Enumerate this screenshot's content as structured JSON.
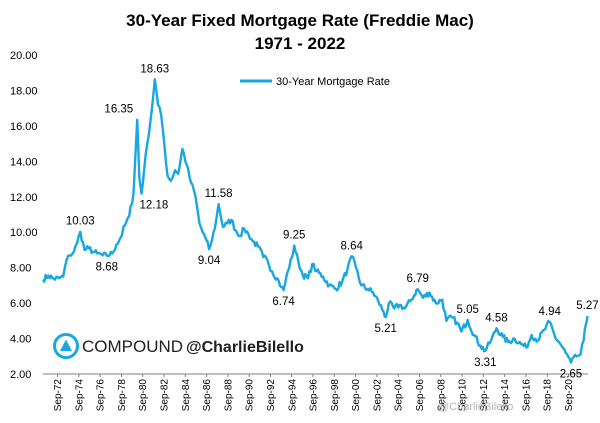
{
  "chart_data": {
    "type": "line",
    "title": "30-Year Fixed Mortgage Rate (Freddie Mac)",
    "subtitle": "1971 - 2022",
    "xlabel": "",
    "ylabel": "",
    "ylim": [
      2.0,
      20.0
    ],
    "yticks": [
      "2.00",
      "4.00",
      "6.00",
      "8.00",
      "10.00",
      "12.00",
      "14.00",
      "16.00",
      "18.00",
      "20.00"
    ],
    "xticks": [
      "Sep-72",
      "Sep-74",
      "Sep-76",
      "Sep-78",
      "Sep-80",
      "Sep-82",
      "Sep-84",
      "Sep-86",
      "Sep-88",
      "Sep-90",
      "Sep-92",
      "Sep-94",
      "Sep-96",
      "Sep-98",
      "Sep-00",
      "Sep-02",
      "Sep-04",
      "Sep-06",
      "Sep-08",
      "Sep-10",
      "Sep-12",
      "Sep-14",
      "Sep-16",
      "Sep-18",
      "Sep-20"
    ],
    "xrange": [
      1971.3,
      2022.5
    ],
    "legend": {
      "position": "top-center",
      "entries": [
        "30-Year Mortgage Rate"
      ]
    },
    "grid": false,
    "color": "#1aa7e0",
    "series": [
      {
        "name": "30-Year Mortgage Rate",
        "points": [
          [
            1971.3,
            7.33
          ],
          [
            1971.8,
            7.55
          ],
          [
            1972.3,
            7.38
          ],
          [
            1972.8,
            7.4
          ],
          [
            1973.2,
            7.5
          ],
          [
            1973.5,
            8.4
          ],
          [
            1973.8,
            8.7
          ],
          [
            1974.2,
            8.9
          ],
          [
            1974.5,
            9.4
          ],
          [
            1974.8,
            10.03
          ],
          [
            1975.2,
            9.0
          ],
          [
            1975.6,
            9.1
          ],
          [
            1976.0,
            8.9
          ],
          [
            1976.4,
            8.8
          ],
          [
            1976.9,
            8.7
          ],
          [
            1977.3,
            8.68
          ],
          [
            1977.8,
            8.8
          ],
          [
            1978.2,
            9.3
          ],
          [
            1978.6,
            9.7
          ],
          [
            1979.0,
            10.4
          ],
          [
            1979.4,
            10.9
          ],
          [
            1979.8,
            12.2
          ],
          [
            1980.15,
            16.35
          ],
          [
            1980.35,
            13.1
          ],
          [
            1980.55,
            12.18
          ],
          [
            1980.8,
            13.5
          ],
          [
            1981.1,
            15.0
          ],
          [
            1981.5,
            16.8
          ],
          [
            1981.8,
            18.63
          ],
          [
            1982.1,
            17.2
          ],
          [
            1982.4,
            16.6
          ],
          [
            1982.7,
            15.0
          ],
          [
            1983.0,
            13.2
          ],
          [
            1983.3,
            12.9
          ],
          [
            1983.7,
            13.5
          ],
          [
            1984.0,
            13.3
          ],
          [
            1984.4,
            14.7
          ],
          [
            1984.8,
            13.8
          ],
          [
            1985.2,
            12.8
          ],
          [
            1985.6,
            12.1
          ],
          [
            1986.0,
            10.5
          ],
          [
            1986.3,
            10.0
          ],
          [
            1986.6,
            9.6
          ],
          [
            1986.9,
            9.04
          ],
          [
            1987.2,
            9.6
          ],
          [
            1987.55,
            10.6
          ],
          [
            1987.8,
            11.58
          ],
          [
            1988.2,
            10.3
          ],
          [
            1988.6,
            10.5
          ],
          [
            1989.0,
            10.7
          ],
          [
            1989.4,
            10.1
          ],
          [
            1989.8,
            9.8
          ],
          [
            1990.2,
            10.2
          ],
          [
            1990.6,
            9.9
          ],
          [
            1991.0,
            9.5
          ],
          [
            1991.5,
            9.2
          ],
          [
            1992.0,
            8.6
          ],
          [
            1992.4,
            8.4
          ],
          [
            1992.8,
            7.8
          ],
          [
            1993.3,
            7.4
          ],
          [
            1993.7,
            6.9
          ],
          [
            1993.9,
            6.74
          ],
          [
            1994.3,
            7.8
          ],
          [
            1994.7,
            8.6
          ],
          [
            1994.9,
            9.25
          ],
          [
            1995.3,
            8.3
          ],
          [
            1995.7,
            7.6
          ],
          [
            1996.2,
            7.4
          ],
          [
            1996.6,
            8.2
          ],
          [
            1997.0,
            7.8
          ],
          [
            1997.6,
            7.5
          ],
          [
            1998.2,
            7.0
          ],
          [
            1998.8,
            6.8
          ],
          [
            1999.4,
            7.2
          ],
          [
            1999.9,
            7.9
          ],
          [
            2000.3,
            8.64
          ],
          [
            2000.7,
            8.0
          ],
          [
            2001.2,
            7.0
          ],
          [
            2001.8,
            6.8
          ],
          [
            2002.3,
            6.6
          ],
          [
            2002.8,
            6.1
          ],
          [
            2003.3,
            5.5
          ],
          [
            2003.5,
            5.21
          ],
          [
            2003.8,
            6.0
          ],
          [
            2004.3,
            5.7
          ],
          [
            2004.8,
            5.9
          ],
          [
            2005.3,
            5.7
          ],
          [
            2005.8,
            6.1
          ],
          [
            2006.5,
            6.79
          ],
          [
            2007.0,
            6.3
          ],
          [
            2007.6,
            6.6
          ],
          [
            2008.2,
            6.0
          ],
          [
            2008.8,
            6.2
          ],
          [
            2009.2,
            5.0
          ],
          [
            2009.7,
            5.2
          ],
          [
            2010.2,
            4.9
          ],
          [
            2010.6,
            4.4
          ],
          [
            2011.2,
            5.05
          ],
          [
            2011.8,
            4.2
          ],
          [
            2012.4,
            3.6
          ],
          [
            2012.85,
            3.31
          ],
          [
            2013.4,
            3.9
          ],
          [
            2013.9,
            4.58
          ],
          [
            2014.5,
            4.1
          ],
          [
            2015.0,
            3.8
          ],
          [
            2015.6,
            4.0
          ],
          [
            2016.2,
            3.7
          ],
          [
            2016.7,
            3.5
          ],
          [
            2017.2,
            4.2
          ],
          [
            2017.8,
            3.9
          ],
          [
            2018.4,
            4.5
          ],
          [
            2018.9,
            4.94
          ],
          [
            2019.4,
            4.1
          ],
          [
            2019.9,
            3.7
          ],
          [
            2020.4,
            3.2
          ],
          [
            2020.9,
            2.65
          ],
          [
            2021.4,
            3.0
          ],
          [
            2021.8,
            3.1
          ],
          [
            2022.1,
            3.9
          ],
          [
            2022.3,
            4.8
          ],
          [
            2022.45,
            5.27
          ]
        ]
      }
    ],
    "annotations": [
      {
        "text": "10.03",
        "x": 1974.8,
        "y": 10.03,
        "pos": "above"
      },
      {
        "text": "8.68",
        "x": 1977.3,
        "y": 8.68,
        "pos": "below"
      },
      {
        "text": "16.35",
        "x": 1980.15,
        "y": 16.35,
        "pos": "above-left"
      },
      {
        "text": "12.18",
        "x": 1980.55,
        "y": 12.18,
        "pos": "below-right"
      },
      {
        "text": "18.63",
        "x": 1981.8,
        "y": 18.63,
        "pos": "above"
      },
      {
        "text": "9.04",
        "x": 1986.9,
        "y": 9.04,
        "pos": "below"
      },
      {
        "text": "11.58",
        "x": 1987.8,
        "y": 11.58,
        "pos": "above"
      },
      {
        "text": "6.74",
        "x": 1993.9,
        "y": 6.74,
        "pos": "below"
      },
      {
        "text": "9.25",
        "x": 1994.9,
        "y": 9.25,
        "pos": "above"
      },
      {
        "text": "8.64",
        "x": 2000.3,
        "y": 8.64,
        "pos": "above"
      },
      {
        "text": "5.21",
        "x": 2003.5,
        "y": 5.21,
        "pos": "below"
      },
      {
        "text": "6.79",
        "x": 2006.5,
        "y": 6.79,
        "pos": "above"
      },
      {
        "text": "5.05",
        "x": 2011.2,
        "y": 5.05,
        "pos": "above"
      },
      {
        "text": "3.31",
        "x": 2012.85,
        "y": 3.31,
        "pos": "below"
      },
      {
        "text": "4.58",
        "x": 2013.9,
        "y": 4.58,
        "pos": "above"
      },
      {
        "text": "4.94",
        "x": 2018.9,
        "y": 4.94,
        "pos": "above"
      },
      {
        "text": "2.65",
        "x": 2020.9,
        "y": 2.65,
        "pos": "below"
      },
      {
        "text": "5.27",
        "x": 2022.45,
        "y": 5.27,
        "pos": "above"
      }
    ]
  },
  "branding": {
    "brand": "COMPOUND",
    "handle": "@CharlieBilello",
    "logo_color": "#1aa7e0",
    "watermark": "@CharlieBilello"
  }
}
